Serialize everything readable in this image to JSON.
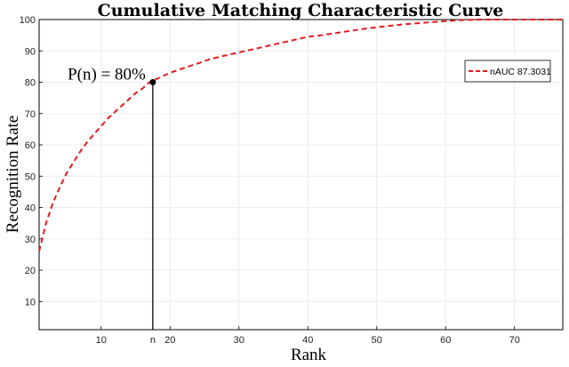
{
  "chart_data": {
    "type": "line",
    "title": "Cumulative Matching Characteristic Curve",
    "xlabel": "Rank",
    "ylabel": "Recognition Rate",
    "xlim": [
      1,
      77
    ],
    "ylim": [
      1,
      100
    ],
    "xticks": [
      10,
      20,
      30,
      40,
      50,
      60,
      70
    ],
    "yticks": [
      10,
      20,
      30,
      40,
      50,
      60,
      70,
      80,
      90,
      100
    ],
    "grid": true,
    "legend_position": "top-right",
    "series": [
      {
        "name": "nAUC 87.3031",
        "color": "#e41a1c",
        "style": "dashed",
        "x": [
          1,
          2,
          3,
          4,
          5,
          6,
          7,
          8,
          9,
          10,
          11,
          12,
          13,
          14,
          15,
          16,
          17,
          18,
          20,
          22,
          24,
          26,
          28,
          30,
          32,
          34,
          36,
          38,
          40,
          42,
          45,
          48,
          51,
          54,
          57,
          60,
          62,
          65,
          70,
          77
        ],
        "y": [
          26,
          35,
          41.5,
          46.5,
          51,
          54.5,
          58,
          61,
          63.5,
          66,
          68.5,
          70.5,
          72.5,
          74.5,
          76.5,
          78,
          80,
          81,
          83,
          84.5,
          86,
          87.5,
          88.5,
          89.5,
          90.5,
          91.5,
          92.5,
          93.5,
          94.5,
          95,
          96,
          97,
          97.8,
          98.5,
          99,
          99.5,
          99.8,
          100,
          100,
          100
        ]
      }
    ],
    "marker": {
      "x": 17.5,
      "y": 80,
      "label": "P(n) = 80%",
      "tick_label": "n"
    }
  }
}
